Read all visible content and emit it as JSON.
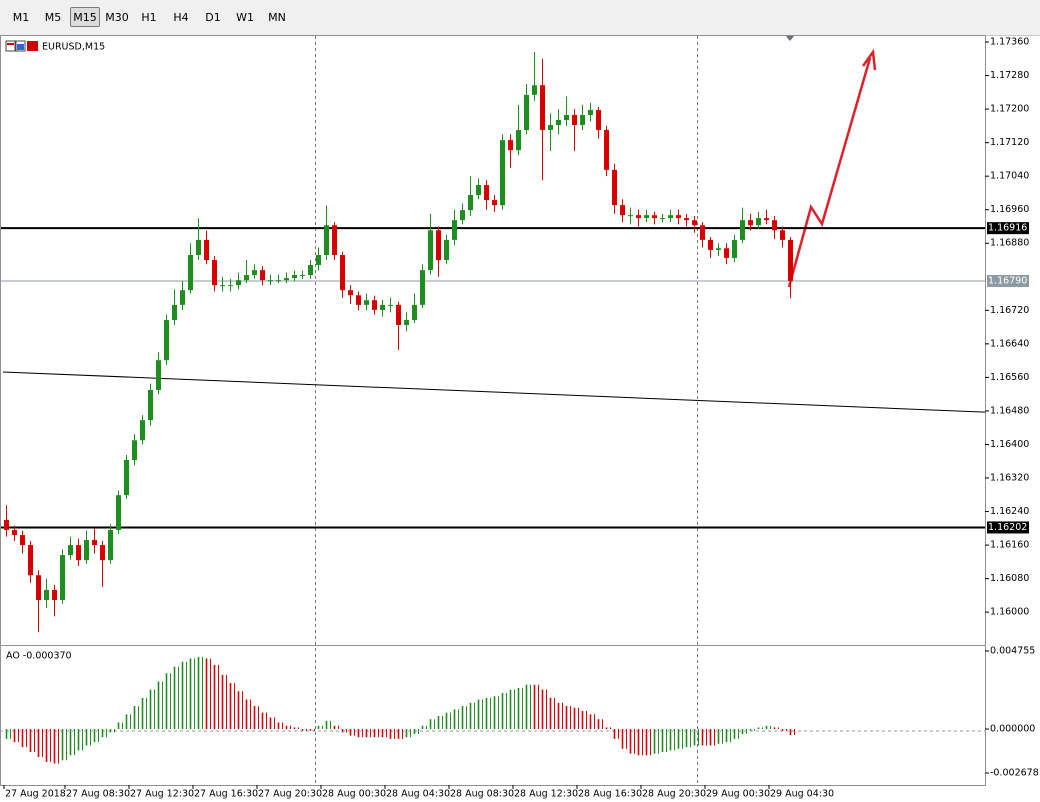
{
  "toolbar": {
    "timeframes": [
      "M1",
      "M5",
      "M15",
      "M30",
      "H1",
      "H4",
      "D1",
      "W1",
      "MN"
    ],
    "selected": 2
  },
  "chart_data": [
    {
      "type": "candlestick",
      "title": "EURUSD,M15",
      "up_color": "#1e8f1e",
      "down_color": "#d90000",
      "x_labels": [
        "27 Aug 2018",
        "27 Aug 08:30",
        "27 Aug 12:30",
        "27 Aug 16:30",
        "27 Aug 20:30",
        "28 Aug 00:30",
        "28 Aug 04:30",
        "28 Aug 08:30",
        "28 Aug 12:30",
        "28 Aug 16:30",
        "28 Aug 20:30",
        "29 Aug 00:30",
        "29 Aug 04:30"
      ],
      "open": [
        1.1622,
        1.16196,
        1.16184,
        1.1616,
        1.16088,
        1.16029,
        1.16053,
        1.16029,
        1.16136,
        1.1616,
        1.16124,
        1.16172,
        1.1616,
        1.16124,
        1.16196,
        1.16279,
        1.16363,
        1.1641,
        1.16458,
        1.1653,
        1.16601,
        1.16697,
        1.16733,
        1.16768,
        1.16852,
        1.16888,
        1.1684,
        1.1678,
        1.1678,
        1.1678,
        1.16792,
        1.16804,
        1.16816,
        1.16792,
        1.16792,
        1.16792,
        1.16797,
        1.16804,
        1.16804,
        1.16828,
        1.16852,
        1.16923,
        1.16852,
        1.16768,
        1.16756,
        1.16733,
        1.16744,
        1.16721,
        1.16733,
        1.16733,
        1.16685,
        1.16697,
        1.16733,
        1.16816,
        1.16911,
        1.1684,
        1.16888,
        1.16935,
        1.16959,
        1.16995,
        1.17019,
        1.16983,
        1.16971,
        1.17126,
        1.17102,
        1.1715,
        1.17234,
        1.17257,
        1.1715,
        1.17162,
        1.17174,
        1.17186,
        1.17162,
        1.17186,
        1.17198,
        1.1715,
        1.17055,
        1.16971,
        1.16947,
        1.16947,
        1.1694,
        1.16947,
        1.1694,
        1.1694,
        1.16947,
        1.1694,
        1.16935,
        1.16923,
        1.16888,
        1.16864,
        1.16868,
        1.16845,
        1.16888,
        1.16935,
        1.16923,
        1.1694,
        1.16935,
        1.16911,
        1.16888
      ],
      "high": [
        1.16255,
        1.16206,
        1.16194,
        1.1617,
        1.161,
        1.1608,
        1.16065,
        1.1615,
        1.1618,
        1.16175,
        1.16195,
        1.162,
        1.1617,
        1.1621,
        1.1629,
        1.16375,
        1.16425,
        1.1647,
        1.16545,
        1.1662,
        1.1671,
        1.1677,
        1.1679,
        1.1688,
        1.1694,
        1.1691,
        1.1685,
        1.168,
        1.16795,
        1.1681,
        1.1684,
        1.1683,
        1.16825,
        1.16805,
        1.16805,
        1.1681,
        1.16815,
        1.16815,
        1.1684,
        1.1687,
        1.1697,
        1.1693,
        1.1686,
        1.1678,
        1.16765,
        1.1676,
        1.16755,
        1.16745,
        1.1675,
        1.1674,
        1.16715,
        1.1676,
        1.1683,
        1.1695,
        1.1692,
        1.169,
        1.1696,
        1.16975,
        1.1704,
        1.17035,
        1.1703,
        1.16995,
        1.1714,
        1.1714,
        1.1721,
        1.1726,
        1.17336,
        1.1732,
        1.1719,
        1.172,
        1.1723,
        1.172,
        1.1721,
        1.17215,
        1.17205,
        1.1716,
        1.1707,
        1.16985,
        1.16965,
        1.1696,
        1.1696,
        1.16955,
        1.1695,
        1.1696,
        1.1696,
        1.1695,
        1.16945,
        1.1693,
        1.16895,
        1.1688,
        1.1688,
        1.169,
        1.16965,
        1.1695,
        1.16955,
        1.1696,
        1.16945,
        1.1692,
        1.16895
      ],
      "low": [
        1.1618,
        1.1617,
        1.1614,
        1.1607,
        1.15952,
        1.1601,
        1.1599,
        1.1602,
        1.16125,
        1.1611,
        1.16115,
        1.1614,
        1.1606,
        1.16115,
        1.16186,
        1.1627,
        1.1635,
        1.164,
        1.16445,
        1.1652,
        1.1659,
        1.16685,
        1.1672,
        1.1676,
        1.1684,
        1.1683,
        1.16765,
        1.16765,
        1.16765,
        1.1677,
        1.16785,
        1.16795,
        1.1678,
        1.1678,
        1.16785,
        1.16785,
        1.1679,
        1.16795,
        1.16795,
        1.16815,
        1.1684,
        1.1684,
        1.1675,
        1.16735,
        1.1672,
        1.1672,
        1.1671,
        1.16705,
        1.16715,
        1.16625,
        1.1667,
        1.1669,
        1.16725,
        1.16805,
        1.168,
        1.1683,
        1.16875,
        1.16925,
        1.16945,
        1.16985,
        1.1696,
        1.16955,
        1.1696,
        1.1706,
        1.1709,
        1.1714,
        1.1722,
        1.1703,
        1.171,
        1.1714,
        1.1716,
        1.171,
        1.1715,
        1.1717,
        1.1713,
        1.1704,
        1.1695,
        1.1693,
        1.16925,
        1.1692,
        1.1693,
        1.16925,
        1.1693,
        1.1693,
        1.16925,
        1.1692,
        1.16905,
        1.1687,
        1.16845,
        1.1685,
        1.1683,
        1.16835,
        1.1688,
        1.1691,
        1.16915,
        1.16925,
        1.1689,
        1.1687,
        1.16749
      ],
      "close": [
        1.16196,
        1.16184,
        1.1616,
        1.16088,
        1.16029,
        1.16053,
        1.16029,
        1.16136,
        1.1616,
        1.16124,
        1.16172,
        1.1616,
        1.16124,
        1.16196,
        1.16279,
        1.16363,
        1.1641,
        1.16458,
        1.1653,
        1.16601,
        1.16697,
        1.16733,
        1.16768,
        1.16852,
        1.16888,
        1.1684,
        1.1678,
        1.1678,
        1.1678,
        1.16792,
        1.16804,
        1.16816,
        1.16792,
        1.16792,
        1.16792,
        1.16797,
        1.16804,
        1.16804,
        1.16828,
        1.16852,
        1.16923,
        1.16852,
        1.16768,
        1.16756,
        1.16733,
        1.16744,
        1.16721,
        1.16733,
        1.16733,
        1.16685,
        1.16697,
        1.16733,
        1.16816,
        1.16911,
        1.1684,
        1.16888,
        1.16935,
        1.16959,
        1.16995,
        1.17019,
        1.16983,
        1.16971,
        1.17126,
        1.17102,
        1.1715,
        1.17234,
        1.17257,
        1.1715,
        1.17162,
        1.17174,
        1.17186,
        1.17162,
        1.17186,
        1.17198,
        1.1715,
        1.17055,
        1.16971,
        1.16947,
        1.16947,
        1.1694,
        1.16947,
        1.1694,
        1.1694,
        1.16947,
        1.1694,
        1.16935,
        1.16923,
        1.16888,
        1.16864,
        1.16868,
        1.16845,
        1.16888,
        1.16935,
        1.16923,
        1.1694,
        1.16935,
        1.16911,
        1.16888,
        1.1679
      ],
      "ylim": [
        1.15924,
        1.17372
      ],
      "yticks": [
        {
          "value": 1.1736,
          "label": "1.17360"
        },
        {
          "value": 1.1728,
          "label": "1.17280"
        },
        {
          "value": 1.172,
          "label": "1.17200"
        },
        {
          "value": 1.1712,
          "label": "1.17120"
        },
        {
          "value": 1.1704,
          "label": "1.17040"
        },
        {
          "value": 1.1696,
          "label": "1.16960"
        },
        {
          "value": 1.1688,
          "label": "1.16880"
        },
        {
          "value": 1.1672,
          "label": "1.16720"
        },
        {
          "value": 1.1664,
          "label": "1.16640"
        },
        {
          "value": 1.1656,
          "label": "1.16560"
        },
        {
          "value": 1.1648,
          "label": "1.16480"
        },
        {
          "value": 1.164,
          "label": "1.16400"
        },
        {
          "value": 1.1632,
          "label": "1.16320"
        },
        {
          "value": 1.1624,
          "label": "1.16240"
        },
        {
          "value": 1.1616,
          "label": "1.16160"
        },
        {
          "value": 1.1608,
          "label": "1.16080"
        },
        {
          "value": 1.16,
          "label": "1.16000"
        }
      ],
      "levels": [
        {
          "value": 1.16916,
          "color": "#000000"
        },
        {
          "value": 1.1679,
          "label": "1.16790",
          "color": "#8c9aa4"
        },
        {
          "value": 1.16202,
          "color": "#000000"
        }
      ],
      "trendline": [
        1.16573,
        1.16477
      ]
    },
    {
      "type": "bar",
      "title": "AO -0.000370",
      "up_color": "#1e8f1e",
      "down_color": "#d90000",
      "values": [
        -0.0006,
        -0.0008,
        -0.0011,
        -0.0014,
        -0.0017,
        -0.002,
        -0.0021,
        -0.0019,
        -0.0016,
        -0.0013,
        -0.001,
        -0.0008,
        -0.0005,
        -0.0002,
        0.0004,
        0.0009,
        0.0014,
        0.0019,
        0.0024,
        0.0029,
        0.0034,
        0.0038,
        0.0041,
        0.0043,
        0.0044,
        0.0043,
        0.0039,
        0.0033,
        0.0028,
        0.0023,
        0.0018,
        0.0014,
        0.001,
        0.0007,
        0.0004,
        0.0002,
        0.0001,
        -0.0001,
        -0.0001,
        0.0002,
        0.0005,
        0.0002,
        -0.0002,
        -0.0004,
        -0.0005,
        -0.0005,
        -0.0005,
        -0.0005,
        -0.0006,
        -0.0006,
        -0.0005,
        -0.0003,
        0.0002,
        0.0006,
        0.0008,
        0.001,
        0.0012,
        0.0014,
        0.0016,
        0.0018,
        0.0019,
        0.002,
        0.0022,
        0.0024,
        0.0025,
        0.0027,
        0.0027,
        0.0024,
        0.0019,
        0.0016,
        0.0014,
        0.0013,
        0.0011,
        0.0009,
        0.0006,
        0.0001,
        -0.0006,
        -0.0012,
        -0.0015,
        -0.0016,
        -0.0016,
        -0.0015,
        -0.0014,
        -0.0013,
        -0.0012,
        -0.0011,
        -0.001,
        -0.001,
        -0.001,
        -0.0009,
        -0.0008,
        -0.0006,
        -0.0003,
        -0.0001,
        0.0001,
        0.0002,
        0.0001,
        -0.0001,
        -0.00037
      ],
      "ylim": [
        -0.003348,
        0.00506
      ],
      "yticks": [
        {
          "value": 0.004755,
          "label": "0.004755"
        },
        {
          "value": 0,
          "label": "0.000000"
        },
        {
          "value": -0.002678,
          "label": "-0.002678"
        }
      ]
    }
  ]
}
